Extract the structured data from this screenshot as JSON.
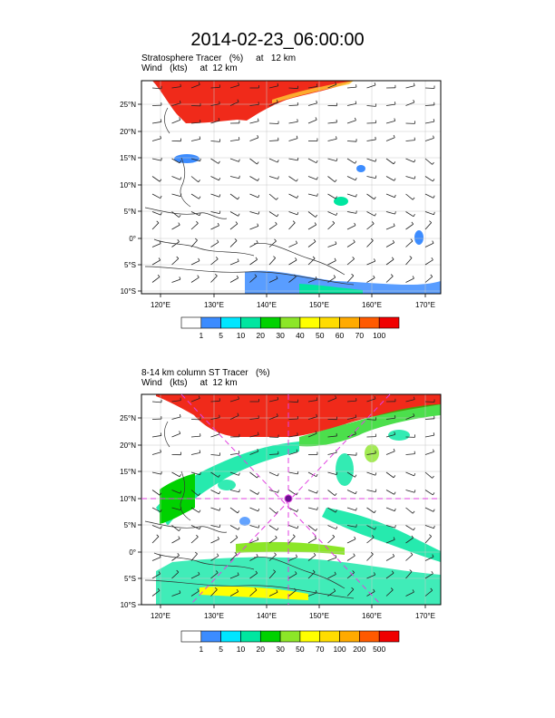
{
  "title": "2014-02-23_06:00:00",
  "panels": [
    {
      "label_line1": "Stratosphere Tracer   (%)     at   12 km",
      "label_line2": "Wind   (kts)     at  12 km",
      "colorbar_colors": [
        "#ffffff",
        "#3c8cff",
        "#00e6ff",
        "#00e6a0",
        "#00d200",
        "#8ce628",
        "#ffff00",
        "#ffdc00",
        "#ffaa00",
        "#ff5a00",
        "#f00000"
      ],
      "colorbar_labels": [
        "1",
        "5",
        "10",
        "20",
        "30",
        "40",
        "50",
        "60",
        "70",
        "100"
      ]
    },
    {
      "label_line1": "8-14 km column ST Tracer   (%)",
      "label_line2": "Wind   (kts)     at  12 km",
      "colorbar_colors": [
        "#ffffff",
        "#3c8cff",
        "#00e6ff",
        "#00e6a0",
        "#00d200",
        "#8ce628",
        "#ffff00",
        "#ffdc00",
        "#ffaa00",
        "#ff5a00",
        "#f00000"
      ],
      "colorbar_labels": [
        "1",
        "5",
        "10",
        "20",
        "30",
        "50",
        "70",
        "100",
        "200",
        "500"
      ]
    }
  ],
  "map": {
    "lon_labels": [
      "120°E",
      "130°E",
      "140°E",
      "150°E",
      "160°E",
      "170°E"
    ],
    "lat_labels": [
      "25°N",
      "20°N",
      "15°N",
      "10°N",
      "5°N",
      "0°",
      "5°S",
      "10°S"
    ],
    "marker_color": "#e040e0"
  }
}
